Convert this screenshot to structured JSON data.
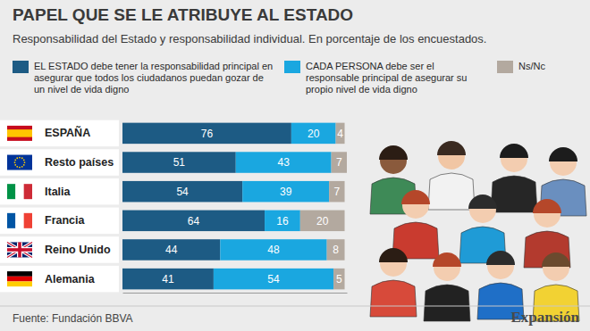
{
  "chart_data": {
    "type": "bar",
    "orientation": "horizontal",
    "stacked": true,
    "data_labels": true,
    "tick_labels": "y",
    "title": "PAPEL QUE SE LE ATRIBUYE AL ESTADO",
    "subtitle": "Responsabilidad del Estado y responsabilidad individual. En porcentaje de los encuestados.",
    "categories": [
      "ESPAÑA",
      "Resto países",
      "Italia",
      "Francia",
      "Reino Unido",
      "Alemania"
    ],
    "series": [
      {
        "name": "EL ESTADO debe tener la responsabilidad principal en asegurar que todos los ciudadanos puedan gozar de un nivel de vida digno",
        "color": "#1d5b84",
        "values": [
          76,
          51,
          54,
          64,
          44,
          41
        ]
      },
      {
        "name": "CADA PERSONA debe ser el responsable principal de asegurar su propio nivel de vida digno",
        "color": "#1aa7e0",
        "values": [
          20,
          43,
          39,
          16,
          48,
          54
        ]
      },
      {
        "name": "Ns/Nc",
        "color": "#b3a99f",
        "values": [
          4,
          7,
          7,
          20,
          8,
          5
        ]
      }
    ],
    "xlim": [
      0,
      101
    ],
    "source": "Fuente: Fundación BBVA",
    "brand": "Expansión"
  }
}
